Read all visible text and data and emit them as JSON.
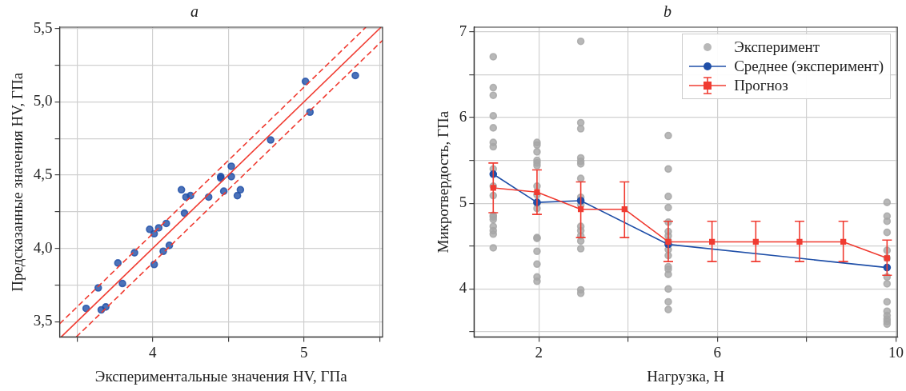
{
  "chart_data": [
    {
      "type": "scatter",
      "title": "a",
      "xlabel": "Экспериментальные значения HV, ГПа",
      "ylabel": "Предсказанные значения HV, ГПа",
      "xlim": [
        3.385,
        5.52
      ],
      "ylim": [
        3.395,
        5.51
      ],
      "xticks": [
        {
          "value": 3.5,
          "label": null
        },
        4,
        {
          "value": 4.5,
          "label": null
        },
        5,
        {
          "value": 5.5,
          "label": null
        }
      ],
      "yticks": [
        {
          "value": 3.5,
          "label": "3,5"
        },
        {
          "value": 3.75,
          "label": null
        },
        {
          "value": 4.0,
          "label": "4,0"
        },
        {
          "value": 4.25,
          "label": null
        },
        {
          "value": 4.5,
          "label": "4,5"
        },
        {
          "value": 4.75,
          "label": null
        },
        {
          "value": 5.0,
          "label": "5,0"
        },
        {
          "value": 5.25,
          "label": null
        },
        {
          "value": 5.5,
          "label": "5,5"
        }
      ],
      "grid": true,
      "legend": false,
      "series": [
        {
          "marker": "circle",
          "color": "#1f4fa8",
          "x": [
            3.56,
            3.64,
            3.66,
            3.69,
            3.77,
            3.8,
            3.88,
            3.98,
            4.01,
            4.04,
            4.01,
            4.07,
            4.09,
            4.11,
            4.19,
            4.22,
            4.21,
            4.25,
            4.37,
            4.45,
            4.45,
            4.47,
            4.52,
            4.52,
            4.56,
            4.58,
            4.78,
            5.01,
            5.04,
            5.34
          ],
          "values": [
            3.59,
            3.73,
            3.58,
            3.6,
            3.9,
            3.76,
            3.97,
            4.13,
            4.1,
            4.14,
            3.89,
            3.98,
            4.17,
            4.02,
            4.4,
            4.35,
            4.24,
            4.36,
            4.35,
            4.49,
            4.48,
            4.39,
            4.56,
            4.49,
            4.36,
            4.4,
            4.74,
            5.14,
            4.93,
            5.18
          ]
        },
        {
          "type": "line",
          "marker": "none",
          "line_style": "solid",
          "color": "#f03c32",
          "x": [
            3.395,
            5.51
          ],
          "values": [
            3.395,
            5.51
          ]
        },
        {
          "type": "line",
          "marker": "none",
          "line_style": "dashed",
          "color": "#f03c32",
          "x": [
            3.385,
            5.41
          ],
          "values": [
            3.485,
            5.51
          ]
        },
        {
          "type": "line",
          "marker": "none",
          "line_style": "dashed",
          "color": "#f03c32",
          "x": [
            3.495,
            5.52
          ],
          "values": [
            3.395,
            5.42
          ]
        }
      ]
    },
    {
      "type": "line",
      "title": "b",
      "xlabel": "Нагрузка, Н",
      "ylabel": "Микротвердость, ГПа",
      "xlim": [
        0.55,
        10.03
      ],
      "ylim": [
        3.44,
        7.055
      ],
      "xticks": [
        2,
        {
          "value": 4,
          "label": null
        },
        6,
        {
          "value": 8,
          "label": null
        },
        10
      ],
      "yticks": [
        {
          "value": 3.5,
          "label": null
        },
        4,
        {
          "value": 4.5,
          "label": null
        },
        5,
        {
          "value": 5.5,
          "label": null
        },
        6,
        {
          "value": 6.5,
          "label": null
        },
        7
      ],
      "grid": true,
      "legend": "top right",
      "series": [
        {
          "name": "Эксперимент",
          "type": "scatter",
          "marker": "circle",
          "color": "#a6a6a6",
          "x": [
            0.98,
            0.98,
            0.98,
            0.98,
            0.98,
            0.98,
            0.98,
            0.98,
            0.98,
            0.98,
            0.98,
            0.98,
            0.98,
            0.98,
            0.98,
            0.98,
            0.98,
            1.96,
            1.96,
            1.96,
            1.96,
            1.96,
            1.96,
            1.96,
            1.96,
            1.96,
            1.96,
            1.96,
            1.96,
            1.96,
            1.96,
            1.96,
            1.96,
            2.94,
            2.94,
            2.94,
            2.94,
            2.94,
            2.94,
            2.94,
            2.94,
            2.94,
            2.94,
            2.94,
            2.94,
            2.94,
            2.94,
            2.94,
            2.94,
            4.9,
            4.9,
            4.9,
            4.9,
            4.9,
            4.9,
            4.9,
            4.9,
            4.9,
            4.9,
            4.9,
            4.9,
            4.9,
            4.9,
            4.9,
            4.9,
            9.8,
            9.8,
            9.8,
            9.8,
            9.8,
            9.8,
            9.8,
            9.8,
            9.8,
            9.8,
            9.8,
            9.8,
            9.8,
            9.8
          ],
          "values": [
            6.71,
            6.35,
            6.26,
            6.02,
            5.88,
            5.71,
            5.66,
            5.4,
            5.2,
            5.09,
            4.86,
            4.84,
            4.81,
            4.73,
            4.68,
            4.64,
            4.48,
            5.71,
            5.68,
            5.6,
            5.5,
            5.47,
            5.44,
            5.2,
            5.1,
            5.0,
            4.94,
            4.6,
            4.59,
            4.44,
            4.29,
            4.14,
            4.09,
            6.89,
            5.94,
            5.87,
            5.53,
            5.49,
            5.46,
            5.29,
            5.07,
            4.98,
            4.73,
            4.68,
            4.62,
            4.56,
            4.47,
            3.99,
            3.95,
            5.79,
            5.4,
            5.08,
            4.95,
            4.78,
            4.67,
            4.62,
            4.56,
            4.46,
            4.39,
            4.26,
            4.23,
            4.17,
            4.0,
            3.85,
            3.76,
            5.01,
            4.85,
            4.79,
            4.66,
            4.45,
            4.36,
            4.14,
            4.06,
            3.85,
            3.74,
            3.69,
            3.65,
            3.62,
            3.59
          ]
        },
        {
          "name": "Среднее (эксперимент)",
          "marker": "circle",
          "line_style": "solid",
          "color": "#1f4fa8",
          "x": [
            0.98,
            1.96,
            2.94,
            4.9,
            9.8
          ],
          "values": [
            5.34,
            5.01,
            5.03,
            4.52,
            4.25
          ]
        },
        {
          "name": "Прогноз",
          "marker": "square",
          "line_style": "solid",
          "color": "#f03c32",
          "x": [
            0.98,
            1.96,
            2.94,
            3.92,
            4.9,
            5.88,
            6.86,
            7.84,
            8.82,
            9.8
          ],
          "values": [
            5.18,
            5.13,
            4.93,
            4.93,
            4.55,
            4.55,
            4.55,
            4.55,
            4.55,
            4.36
          ],
          "errors": [
            [
              4.89,
              5.47
            ],
            [
              4.87,
              5.39
            ],
            [
              4.6,
              5.25
            ],
            [
              4.6,
              5.25
            ],
            [
              4.32,
              4.79
            ],
            [
              4.32,
              4.79
            ],
            [
              4.32,
              4.79
            ],
            [
              4.32,
              4.79
            ],
            [
              4.32,
              4.79
            ],
            [
              4.16,
              4.57
            ]
          ]
        }
      ]
    }
  ]
}
